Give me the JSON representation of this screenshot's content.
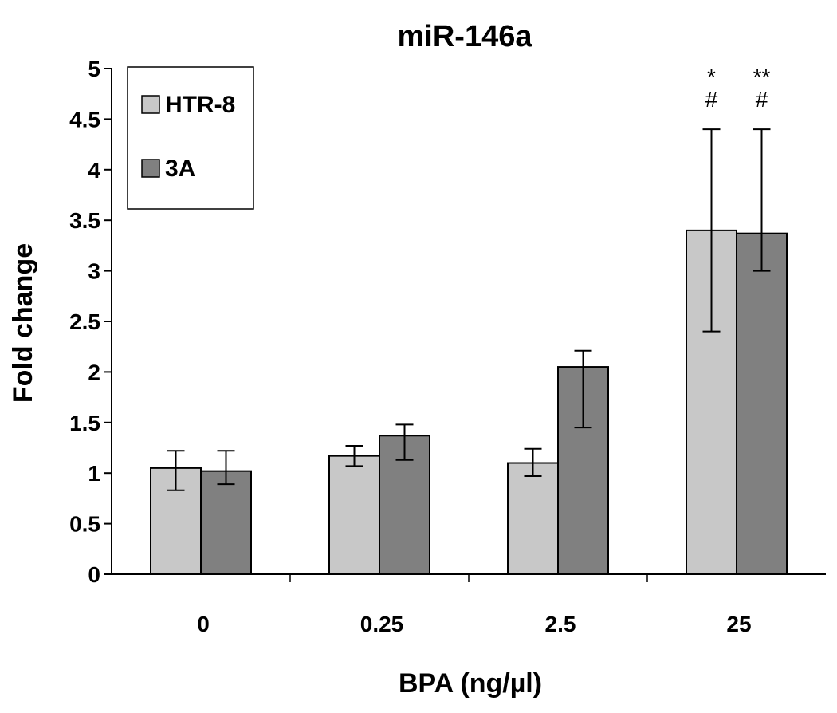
{
  "chart_data": {
    "type": "bar",
    "title": "miR-146a",
    "xlabel": "BPA (ng/µl)",
    "ylabel": "Fold change",
    "ylim": [
      0,
      5
    ],
    "y_ticks": [
      "0",
      "0.5",
      "1",
      "1.5",
      "2",
      "2.5",
      "3",
      "3.5",
      "4",
      "4.5",
      "5"
    ],
    "categories": [
      "0",
      "0.25",
      "2.5",
      "25"
    ],
    "series": [
      {
        "name": "HTR-8",
        "color": "#c8c8c8",
        "values": [
          1.05,
          1.17,
          1.1,
          3.4
        ],
        "err_low": [
          0.83,
          1.07,
          0.97,
          2.4
        ],
        "err_high": [
          1.22,
          1.27,
          1.24,
          4.4
        ]
      },
      {
        "name": "3A",
        "color": "#808080",
        "values": [
          1.02,
          1.37,
          2.05,
          3.37
        ],
        "err_low": [
          0.89,
          1.13,
          1.45,
          3.0
        ],
        "err_high": [
          1.22,
          1.48,
          2.21,
          4.4
        ]
      }
    ],
    "annotations": [
      {
        "category": "25",
        "series": "HTR-8",
        "lines": [
          "*",
          "#"
        ]
      },
      {
        "category": "25",
        "series": "3A",
        "lines": [
          "**",
          "#"
        ]
      }
    ],
    "legend_position": "top-left",
    "grid": false
  }
}
